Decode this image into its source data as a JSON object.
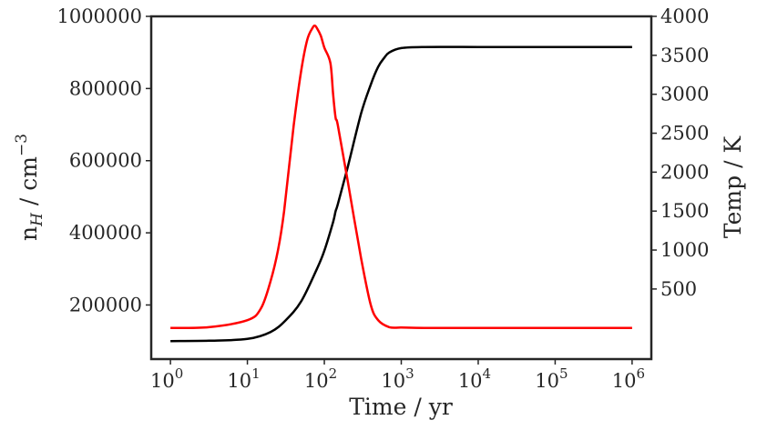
{
  "chart_data": {
    "type": "line",
    "title": "",
    "xlabel": "Time / yr",
    "xscale": "log",
    "xlim_exponents": [
      -0.25,
      6.25
    ],
    "x_tick_labels": [
      {
        "base": "10",
        "exp": "0"
      },
      {
        "base": "10",
        "exp": "1"
      },
      {
        "base": "10",
        "exp": "2"
      },
      {
        "base": "10",
        "exp": "3"
      },
      {
        "base": "10",
        "exp": "4"
      },
      {
        "base": "10",
        "exp": "5"
      },
      {
        "base": "10",
        "exp": "6"
      }
    ],
    "x_ticks": [
      1,
      10,
      100,
      1000,
      10000,
      100000,
      1000000
    ],
    "left_axis": {
      "label_main": "n",
      "label_sub": "H",
      "label_rest": " / cm",
      "label_sup": "−3",
      "ylim": [
        50000,
        1000000
      ],
      "ticks": [
        "200000",
        "400000",
        "600000",
        "800000",
        "1000000"
      ],
      "tick_values": [
        200000,
        400000,
        600000,
        800000,
        1000000
      ]
    },
    "right_axis": {
      "label": "Temp / K",
      "ylim": [
        -400,
        4000
      ],
      "ticks": [
        "500",
        "1000",
        "1500",
        "2000",
        "2500",
        "3000",
        "3500",
        "4000"
      ],
      "tick_values": [
        500,
        1000,
        1500,
        2000,
        2500,
        3000,
        3500,
        4000
      ]
    },
    "grid": false,
    "series": [
      {
        "axis": "left",
        "color": "#000000",
        "x": [
          1,
          3.16,
          10,
          20,
          31.6,
          50,
          80,
          100,
          130,
          140,
          150,
          200,
          300,
          400,
          500,
          600,
          700,
          1000,
          2000,
          10000,
          100000,
          1000000
        ],
        "y": [
          100000,
          101000,
          106000,
          125000,
          158000,
          210000,
          300000,
          350000,
          430000,
          460000,
          480000,
          580000,
          730000,
          810000,
          860000,
          885000,
          900000,
          912000,
          915000,
          915000,
          915000,
          915000
        ]
      },
      {
        "axis": "right",
        "color": "#ff0000",
        "x": [
          1,
          3.16,
          10,
          15,
          20,
          25,
          30,
          40,
          50,
          60,
          70,
          75,
          80,
          90,
          100,
          120,
          130,
          140,
          150,
          200,
          300,
          400,
          500,
          700,
          1000,
          2000,
          10000,
          100000,
          1000000
        ],
        "y": [
          0,
          10,
          100,
          250,
          600,
          1000,
          1500,
          2600,
          3300,
          3700,
          3850,
          3880,
          3850,
          3750,
          3600,
          3400,
          3000,
          2700,
          2600,
          1900,
          900,
          300,
          100,
          10,
          5,
          0,
          0,
          0,
          0
        ]
      }
    ]
  }
}
